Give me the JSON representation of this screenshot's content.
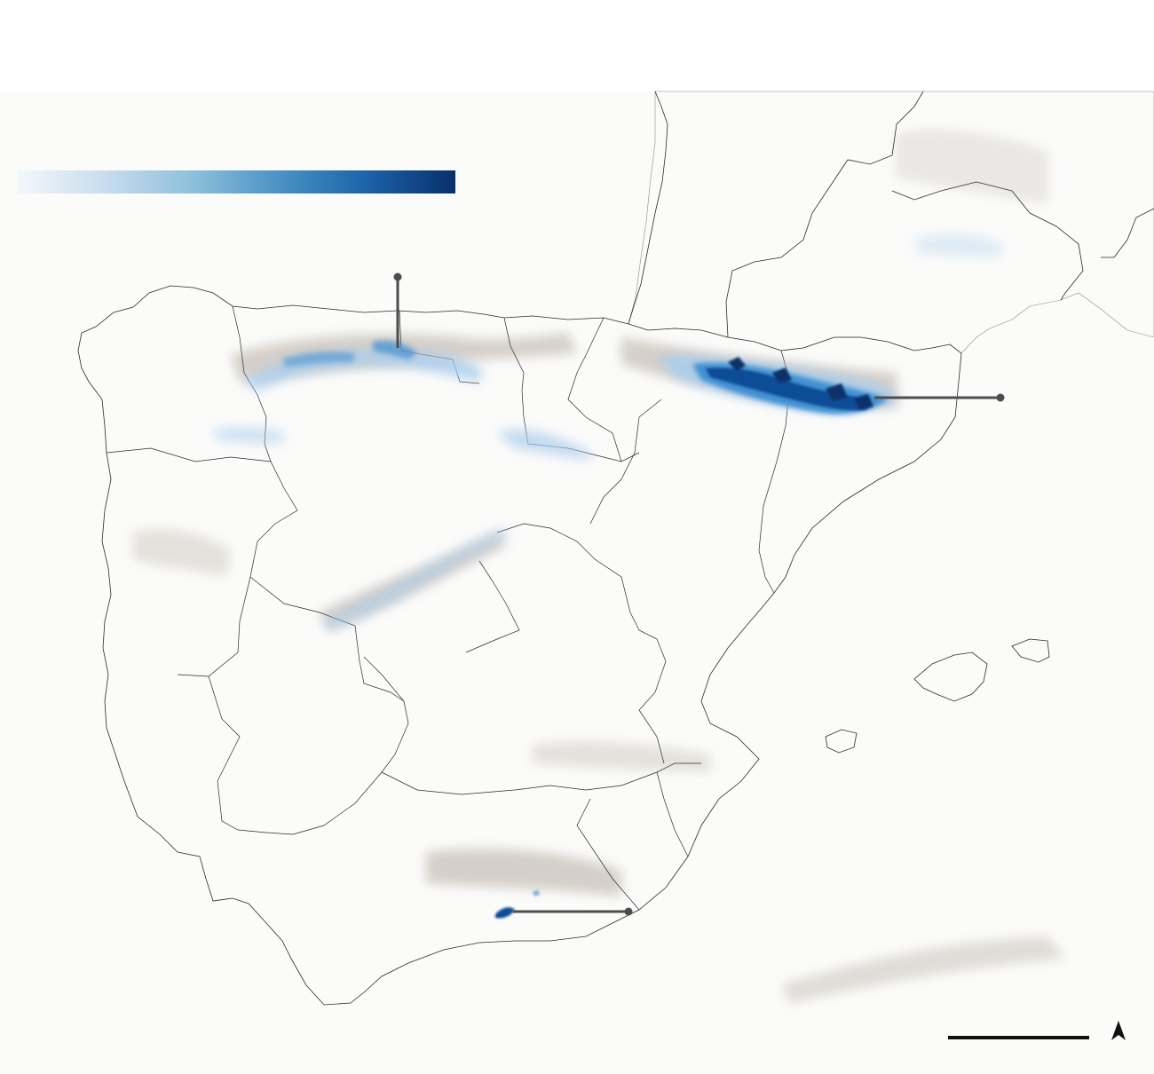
{
  "map": {
    "colors": {
      "sea": "#ffffff",
      "land": "#fbfbfa",
      "border": "#2b2b2b",
      "relief": "#b7aca1",
      "snow_light": "#a9cdec",
      "snow_mid": "#3f8fd0",
      "snow_dark": "#0b4d97",
      "callout": "#4d4d4d"
    },
    "legend": {
      "gradient_colors": [
        "#f3f7fc",
        "#c9dcee",
        "#8dc0db",
        "#4a91c5",
        "#1c62a8",
        "#08306b"
      ],
      "labels": []
    },
    "callouts": [
      {
        "id": "cantabrian-mountains",
        "label": ""
      },
      {
        "id": "pyrenees",
        "label": ""
      },
      {
        "id": "sierra-nevada",
        "label": ""
      }
    ],
    "scale_bar": {
      "label": ""
    },
    "north_arrow": {
      "icon": "north-arrow-icon"
    }
  }
}
